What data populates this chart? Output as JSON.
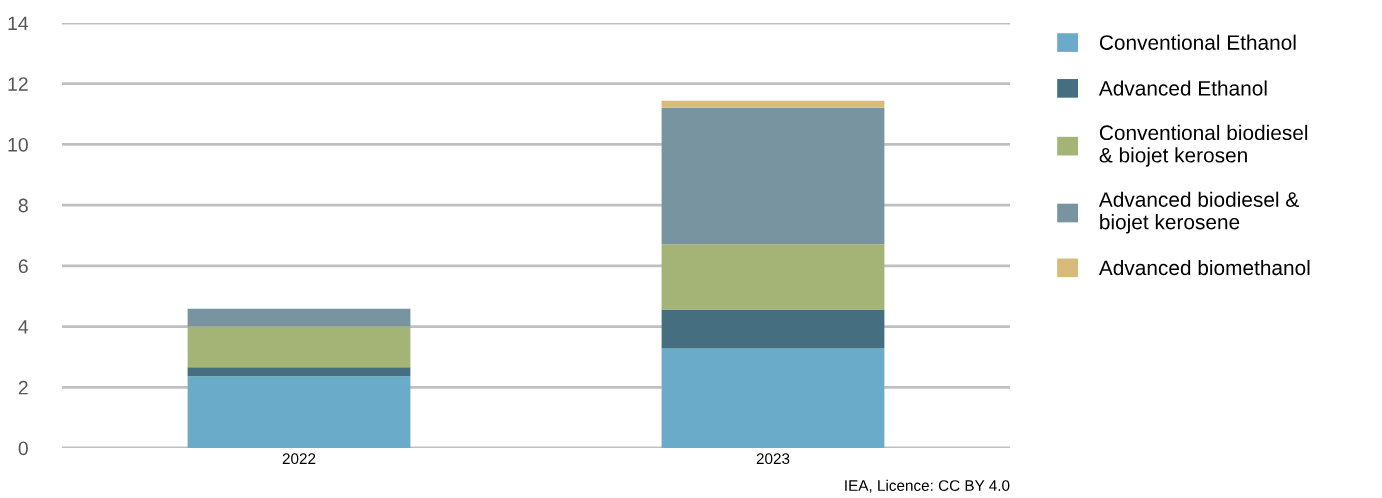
{
  "chart_data": {
    "type": "bar",
    "stacked": true,
    "categories": [
      "2022",
      "2023"
    ],
    "series": [
      {
        "name": "Conventional Ethanol",
        "color": "#69abc9",
        "values": [
          2.36,
          3.28
        ]
      },
      {
        "name": "Advanced Ethanol",
        "color": "#466e81",
        "values": [
          0.3,
          1.28
        ]
      },
      {
        "name": "Conventional biodiesel\n& biojet kerosen",
        "color": "#a4b376",
        "values": [
          1.34,
          2.15
        ]
      },
      {
        "name": "Advanced biodiesel &\nbiojet kerosene",
        "color": "#7894a1",
        "values": [
          0.59,
          4.5
        ]
      },
      {
        "name": "Advanced biomethanol",
        "color": "#d8ba7a",
        "values": [
          0,
          0.23
        ]
      }
    ],
    "ylim": [
      0,
      14
    ],
    "yticks": [
      0,
      2,
      4,
      6,
      8,
      10,
      12,
      14
    ],
    "grid": "y",
    "legend": "right",
    "annotations": [
      "IEA, Licence: CC BY 4.0"
    ]
  }
}
